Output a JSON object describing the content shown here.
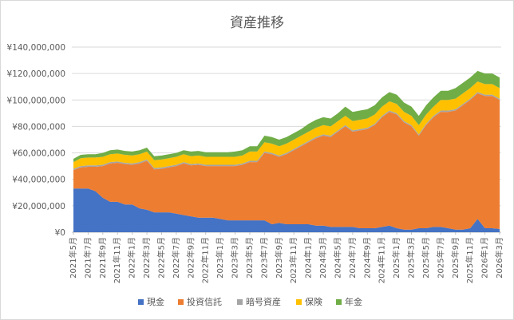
{
  "chart_data": {
    "type": "area",
    "stacked": true,
    "title": "資産推移",
    "xlabel": "",
    "ylabel": "",
    "ylim": [
      0,
      140000000
    ],
    "yticks": [
      0,
      20000000,
      40000000,
      60000000,
      80000000,
      100000000,
      120000000,
      140000000
    ],
    "ytick_labels": [
      "¥0",
      "¥20,000,000",
      "¥40,000,000",
      "¥60,000,000",
      "¥80,000,000",
      "¥100,000,000",
      "¥120,000,000",
      "¥140,000,000"
    ],
    "grid": "horizontal",
    "legend_position": "bottom",
    "categories": [
      "2021年5月",
      "2021年6月",
      "2021年7月",
      "2021年8月",
      "2021年9月",
      "2021年10月",
      "2021年11月",
      "2021年12月",
      "2022年1月",
      "2022年2月",
      "2022年3月",
      "2022年4月",
      "2022年5月",
      "2022年6月",
      "2022年7月",
      "2022年8月",
      "2022年9月",
      "2022年10月",
      "2022年11月",
      "2022年12月",
      "2023年1月",
      "2023年2月",
      "2023年3月",
      "2023年4月",
      "2023年5月",
      "2023年6月",
      "2023年7月",
      "2023年8月",
      "2023年9月",
      "2023年10月",
      "2023年11月",
      "2023年12月",
      "2024年1月",
      "2024年2月",
      "2024年3月",
      "2024年4月",
      "2024年5月",
      "2024年6月",
      "2024年7月",
      "2024年8月",
      "2024年9月",
      "2024年10月",
      "2024年11月",
      "2024年12月",
      "2025年1月",
      "2025年2月",
      "2025年3月",
      "2025年4月",
      "2025年5月",
      "2025年6月",
      "2025年7月",
      "2025年8月",
      "2025年9月",
      "2025年10月",
      "2025年11月",
      "2025年12月",
      "2026年1月",
      "2026年2月",
      "2026年3月"
    ],
    "series": [
      {
        "name": "現金",
        "color": "#4472C4",
        "values": [
          33000000,
          33000000,
          33000000,
          31000000,
          26000000,
          23000000,
          23000000,
          21000000,
          21000000,
          18000000,
          17000000,
          15000000,
          15000000,
          15000000,
          14000000,
          13000000,
          12000000,
          11000000,
          11000000,
          11000000,
          10000000,
          9000000,
          9000000,
          9000000,
          9000000,
          9000000,
          9000000,
          6000000,
          7000000,
          6000000,
          6000000,
          6000000,
          6000000,
          5000000,
          5000000,
          4000000,
          4000000,
          4000000,
          4000000,
          3000000,
          3000000,
          3000000,
          4000000,
          5000000,
          3000000,
          2000000,
          2000000,
          3000000,
          3000000,
          4000000,
          4000000,
          3000000,
          2000000,
          2000000,
          3000000,
          10000000,
          3000000,
          3000000,
          2500000
        ]
      },
      {
        "name": "投資信託",
        "color": "#ED7D31",
        "values": [
          14000000,
          16000000,
          16500000,
          18500000,
          24000000,
          29000000,
          29500000,
          30500000,
          30000000,
          34000000,
          37000000,
          32500000,
          33000000,
          34000000,
          36000000,
          39000000,
          38500000,
          40000000,
          39000000,
          39000000,
          40000000,
          41000000,
          41000000,
          42000000,
          44000000,
          44000000,
          51000000,
          53000000,
          50000000,
          53000000,
          56000000,
          59000000,
          62000000,
          66000000,
          68000000,
          68000000,
          72000000,
          76000000,
          72000000,
          74000000,
          75000000,
          78000000,
          83000000,
          86000000,
          86000000,
          81000000,
          78000000,
          70000000,
          78000000,
          83000000,
          87000000,
          88000000,
          90000000,
          94000000,
          97000000,
          95000000,
          100000000,
          100000000,
          97500000
        ]
      },
      {
        "name": "暗号資産",
        "color": "#A5A5A5",
        "values": [
          1000000,
          1000000,
          1000000,
          1000000,
          1000000,
          1000000,
          1000000,
          1000000,
          1000000,
          1000000,
          1000000,
          1000000,
          1000000,
          1000000,
          1000000,
          1000000,
          1000000,
          1000000,
          1000000,
          1000000,
          1000000,
          1000000,
          1000000,
          1000000,
          1000000,
          1000000,
          1000000,
          1000000,
          1000000,
          1000000,
          1000000,
          1000000,
          1000000,
          1000000,
          1000000,
          1000000,
          1000000,
          1000000,
          1000000,
          1000000,
          1000000,
          1000000,
          1000000,
          1000000,
          1000000,
          1000000,
          1000000,
          1000000,
          1000000,
          1000000,
          1000000,
          1000000,
          1000000,
          1000000,
          1000000,
          1000000,
          1000000,
          1000000,
          1000000
        ]
      },
      {
        "name": "保険",
        "color": "#FFC000",
        "values": [
          5000000,
          6000000,
          6000000,
          6000000,
          6000000,
          6000000,
          6000000,
          6000000,
          6000000,
          6000000,
          6000000,
          6000000,
          6000000,
          6000000,
          6000000,
          6000000,
          6000000,
          6000000,
          6000000,
          6000000,
          6000000,
          6000000,
          6000000,
          6000000,
          7000000,
          7000000,
          7000000,
          7000000,
          7000000,
          7000000,
          7000000,
          7000000,
          7000000,
          7000000,
          7000000,
          7000000,
          7000000,
          7000000,
          7000000,
          7000000,
          7000000,
          7000000,
          7000000,
          7000000,
          7000000,
          7000000,
          7000000,
          7000000,
          7000000,
          7000000,
          8000000,
          8000000,
          8000000,
          8000000,
          8000000,
          8000000,
          8000000,
          8000000,
          8000000
        ]
      },
      {
        "name": "年金",
        "color": "#70AD47",
        "values": [
          2500000,
          2500000,
          2500000,
          2500000,
          3000000,
          3000000,
          3000000,
          3000000,
          3000000,
          3000000,
          3000000,
          3000000,
          3000000,
          3000000,
          3000000,
          3000000,
          3500000,
          3500000,
          3500000,
          3500000,
          3500000,
          3500000,
          4000000,
          4000000,
          4000000,
          4000000,
          5000000,
          5000000,
          5000000,
          5000000,
          5000000,
          5000000,
          6000000,
          6000000,
          6000000,
          6000000,
          6000000,
          7000000,
          7000000,
          7000000,
          7000000,
          7000000,
          7000000,
          7000000,
          7000000,
          7000000,
          7000000,
          7000000,
          7000000,
          7000000,
          7000000,
          7000000,
          8000000,
          8000000,
          8000000,
          8000000,
          8000000,
          8000000,
          8000000
        ]
      }
    ]
  }
}
